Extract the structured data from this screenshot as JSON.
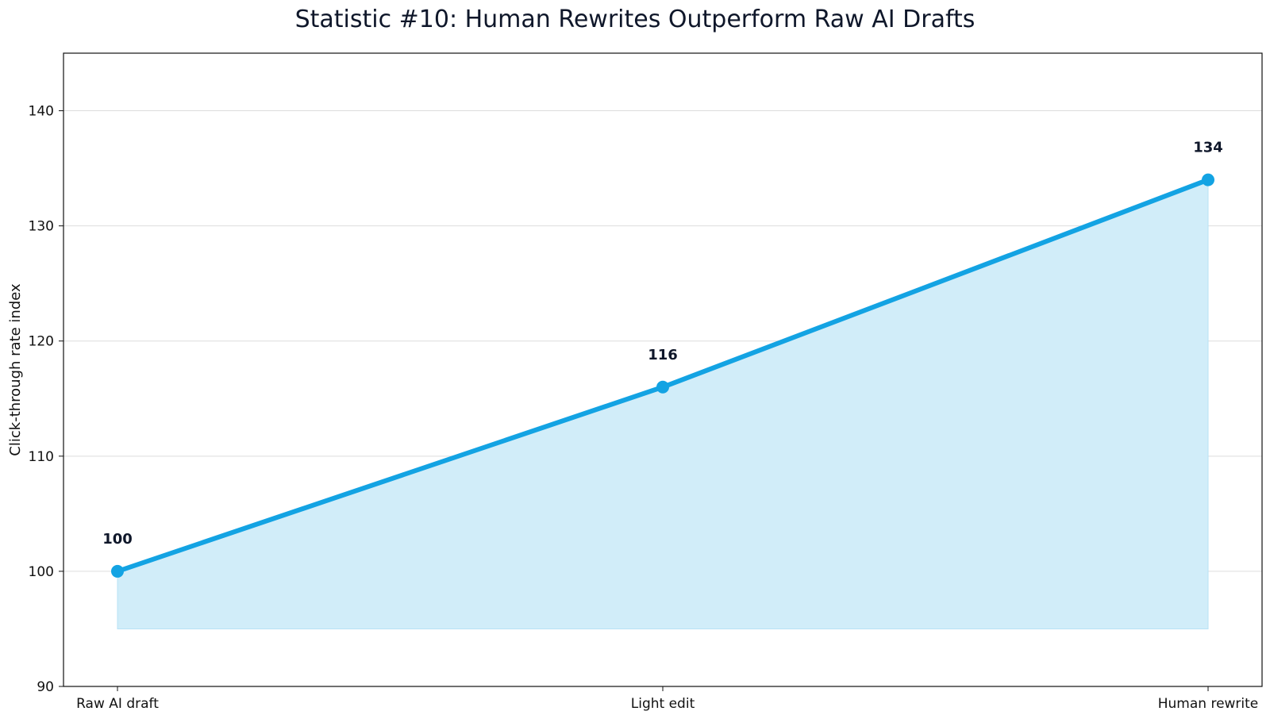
{
  "chart_data": {
    "type": "line",
    "title": "Statistic #10: Human Rewrites Outperform Raw AI Drafts",
    "xlabel": "",
    "ylabel": "Click-through rate index",
    "categories": [
      "Raw AI draft",
      "Light edit",
      "Human rewrite"
    ],
    "values": [
      100,
      116,
      134
    ],
    "data_labels": [
      "100",
      "116",
      "134"
    ],
    "ylim": [
      90,
      145
    ],
    "yticks": [
      90,
      100,
      110,
      120,
      130,
      140
    ],
    "area_baseline": 95,
    "grid": "horizontal",
    "colors": {
      "line": "#13a3e3",
      "fill": "#d1edf9",
      "grid": "#dddddd",
      "text": "#0f172a"
    }
  }
}
